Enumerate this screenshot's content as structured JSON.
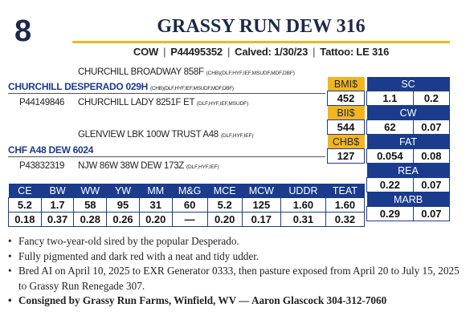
{
  "lot_number": "8",
  "title": "GRASSY RUN DEW 316",
  "info": {
    "sex": "COW",
    "reg": "P44495352",
    "calved": "Calved: 1/30/23",
    "tattoo": "Tattoo: LE 316"
  },
  "pedigree": {
    "sire_sire": {
      "name": "CHURCHILL BROADWAY 858F",
      "codes": "(CHB)(DLF,HYF,IEF,MSUDF,MDF,DBF)"
    },
    "sire": {
      "name": "CHURCHILL DESPERADO 029H",
      "codes": "(CHB)(DLF,HYF,IEF,MSUDF,MDF,DBF)"
    },
    "sire_reg": "P44149846",
    "sire_dam": {
      "name": "CHURCHILL LADY 8251F ET",
      "codes": "(DLF,HYF,IEF,MSUDF)"
    },
    "dam_sire": {
      "name": "GLENVIEW LBK 100W TRUST A48",
      "codes": "(DLF,HYF,IEF)"
    },
    "dam": {
      "name": "CHF A48 DEW 6024",
      "codes": ""
    },
    "dam_reg": "P43832319",
    "dam_dam": {
      "name": "NJW 86W 38W DEW 173Z",
      "codes": "(DLF,HYF,IEF)"
    }
  },
  "indexes": [
    {
      "label": "BMI$",
      "value": "452"
    },
    {
      "label": "BII$",
      "value": "544"
    },
    {
      "label": "CHB$",
      "value": "127"
    }
  ],
  "side_traits": [
    {
      "label": "SC",
      "epd": "1.1",
      "acc": "0.2"
    },
    {
      "label": "CW",
      "epd": "62",
      "acc": "0.07"
    },
    {
      "label": "FAT",
      "epd": "0.054",
      "acc": "0.08"
    },
    {
      "label": "REA",
      "epd": "0.22",
      "acc": "0.07"
    },
    {
      "label": "MARB",
      "epd": "0.29",
      "acc": "0.07"
    }
  ],
  "epd_table": {
    "headers": [
      "CE",
      "BW",
      "WW",
      "YW",
      "MM",
      "M&G",
      "MCE",
      "MCW",
      "UDDR",
      "TEAT"
    ],
    "epd": [
      "5.2",
      "1.7",
      "58",
      "95",
      "31",
      "60",
      "5.2",
      "125",
      "1.60",
      "1.60"
    ],
    "acc": [
      "0.18",
      "0.37",
      "0.28",
      "0.26",
      "0.20",
      "—",
      "0.20",
      "0.17",
      "0.31",
      "0.32"
    ]
  },
  "notes": [
    "Fancy two-year-old sired by the popular Desperado.",
    "Fully pigmented and dark red with a neat and tidy udder.",
    "Bred AI on April 10, 2025 to EXR Generator 0333, then pasture exposed from April 20 to July 15, 2025 to Grassy Run Renegade 307.",
    "Consigned by Grassy Run Farms, Winfield, WV — Aaron Glascock 304-312-7060"
  ]
}
